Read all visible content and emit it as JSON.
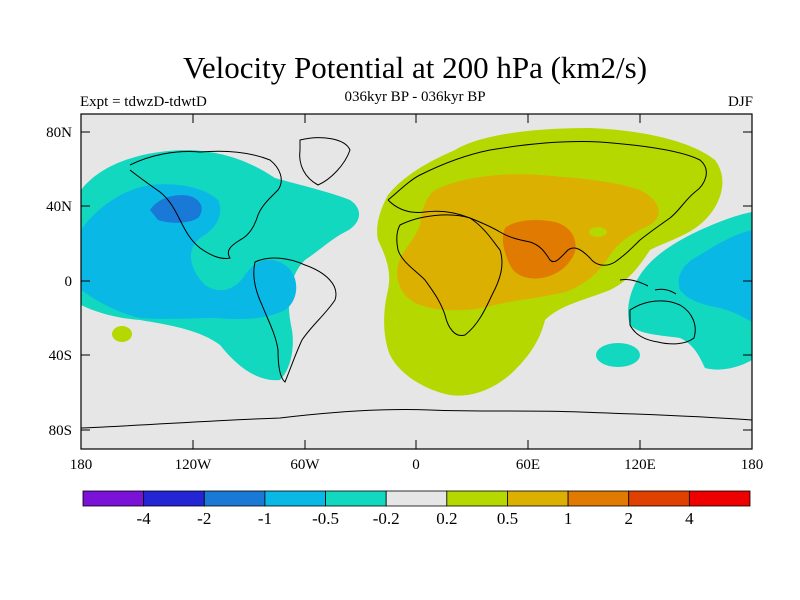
{
  "title": "Velocity Potential at 200 hPa (km2/s)",
  "left_label": "Expt = tdwzD-tdwtD",
  "center_label": "036kyr BP - 036kyr BP",
  "right_label": "DJF",
  "x_ticks": [
    "180",
    "120W",
    "60W",
    "0",
    "60E",
    "120E",
    "180"
  ],
  "y_ticks": [
    "80N",
    "40N",
    "0",
    "40S",
    "80S"
  ],
  "colorbar": {
    "colors": [
      "#7b12d8",
      "#2426d6",
      "#1a78d6",
      "#0ab8e6",
      "#12d8c0",
      "#e6e6e6",
      "#b4d800",
      "#dcb000",
      "#e07a00",
      "#e04000",
      "#ee0000"
    ],
    "labels": [
      "-4",
      "-2",
      "-1",
      "-0.5",
      "-0.2",
      "0.2",
      "0.5",
      "1",
      "2",
      "4"
    ]
  },
  "colors": {
    "neutral": "#e6e6e6",
    "cyan": "#12d8c0",
    "lightblue": "#0ab8e6",
    "blue": "#1a78d6",
    "lime": "#b4d800",
    "gold": "#dcb000",
    "orange": "#e07a00"
  }
}
